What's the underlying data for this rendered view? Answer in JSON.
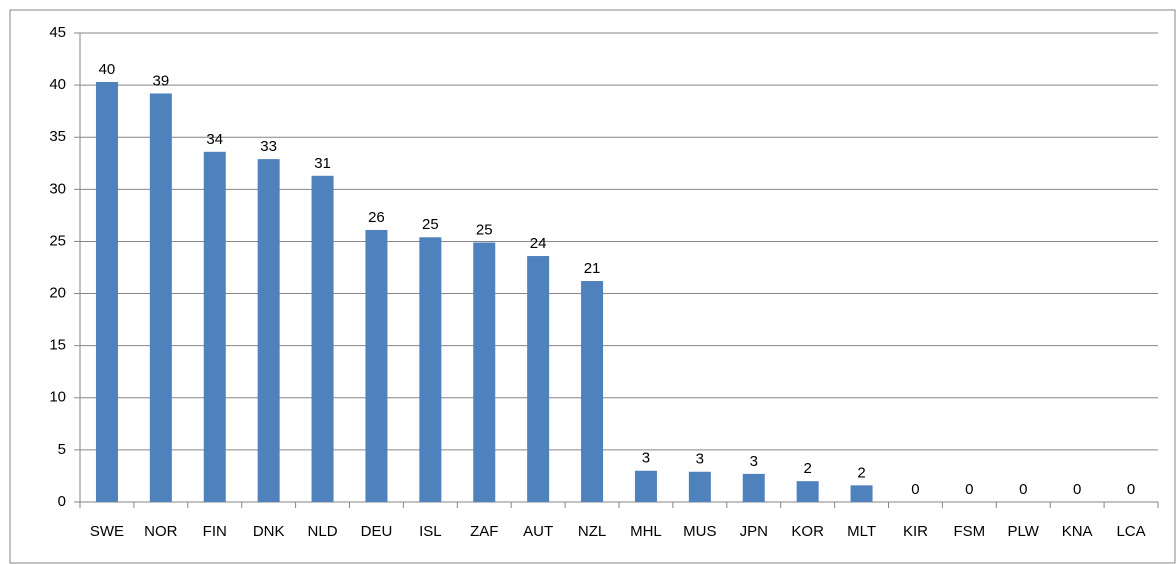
{
  "chart_data": {
    "type": "bar",
    "categories": [
      "SWE",
      "NOR",
      "FIN",
      "DNK",
      "NLD",
      "DEU",
      "ISL",
      "ZAF",
      "AUT",
      "NZL",
      "MHL",
      "MUS",
      "JPN",
      "KOR",
      "MLT",
      "KIR",
      "FSM",
      "PLW",
      "KNA",
      "LCA"
    ],
    "values": [
      40.3,
      39.2,
      33.6,
      32.9,
      31.3,
      26.1,
      25.4,
      24.9,
      23.6,
      21.2,
      3.0,
      2.9,
      2.7,
      2.0,
      1.6,
      0,
      0,
      0,
      0,
      0
    ],
    "value_labels": [
      "40",
      "39",
      "34",
      "33",
      "31",
      "26",
      "25",
      "25",
      "24",
      "21",
      "3",
      "3",
      "3",
      "2",
      "2",
      "0",
      "0",
      "0",
      "0",
      "0"
    ],
    "color": "#4f81bd",
    "ylim": [
      0,
      45
    ],
    "yticks": [
      0,
      5,
      10,
      15,
      20,
      25,
      30,
      35,
      40,
      45
    ],
    "grid": true
  }
}
